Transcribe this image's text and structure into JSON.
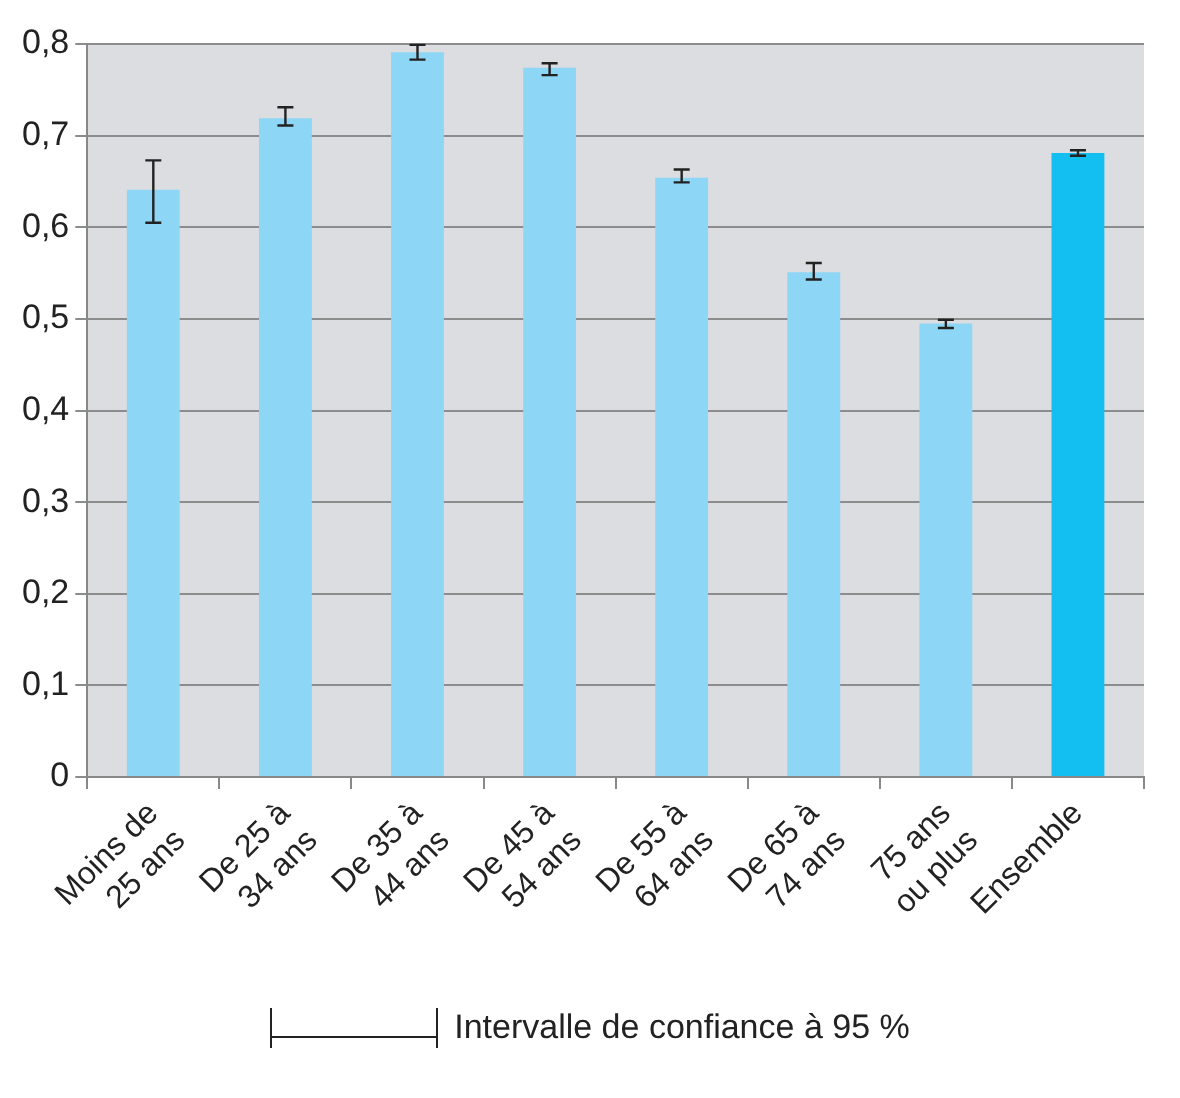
{
  "chart_data": {
    "type": "bar",
    "categories": [
      "Moins de 25 ans",
      "De 25 à 34 ans",
      "De 35 à 44 ans",
      "De 45 à 54 ans",
      "De 55 à 64 ans",
      "De 65 à 74 ans",
      "75 ans ou plus",
      "Ensemble"
    ],
    "values": [
      0.641,
      0.719,
      0.791,
      0.774,
      0.654,
      0.551,
      0.495,
      0.681
    ],
    "colors": [
      "#8dd6f5",
      "#8dd6f5",
      "#8dd6f5",
      "#8dd6f5",
      "#8dd6f5",
      "#8dd6f5",
      "#8dd6f5",
      "#13bff0"
    ],
    "errors": [
      [
        0.605,
        0.673
      ],
      [
        0.711,
        0.731
      ],
      [
        0.783,
        0.799
      ],
      [
        0.766,
        0.779
      ],
      [
        0.649,
        0.663
      ],
      [
        0.543,
        0.561
      ],
      [
        0.49,
        0.499
      ],
      [
        0.678,
        0.684
      ]
    ],
    "ylim": [
      0,
      0.8
    ],
    "yticks": [
      {
        "value": 0,
        "label": "0"
      },
      {
        "value": 0.1,
        "label": "0,1"
      },
      {
        "value": 0.2,
        "label": "0,2"
      },
      {
        "value": 0.3,
        "label": "0,3"
      },
      {
        "value": 0.4,
        "label": "0,4"
      },
      {
        "value": 0.5,
        "label": "0,5"
      },
      {
        "value": 0.6,
        "label": "0,6"
      },
      {
        "value": 0.7,
        "label": "0,7"
      },
      {
        "value": 0.8,
        "label": "0,8"
      }
    ],
    "grid": "y",
    "legend": false,
    "annotations": [
      "Intervalle de confiance à 95 %"
    ]
  }
}
